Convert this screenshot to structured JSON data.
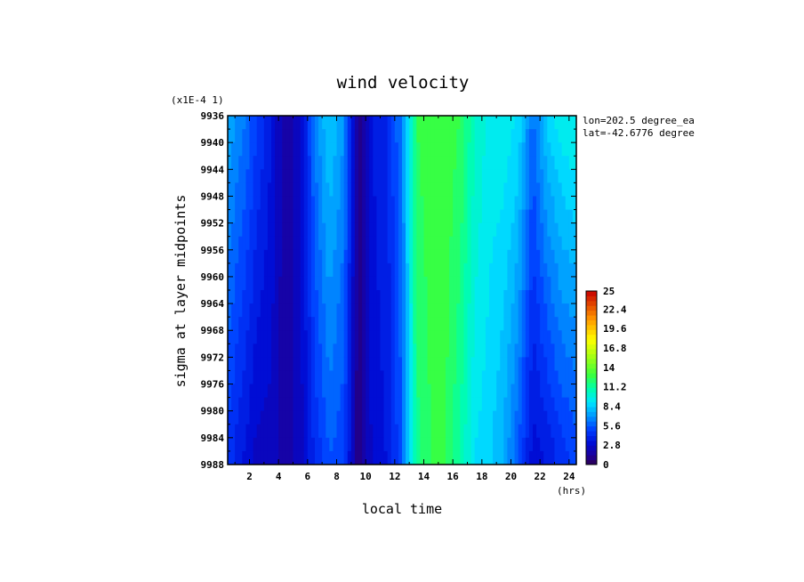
{
  "chart_data": {
    "type": "heatmap",
    "title": "wind velocity",
    "xlabel": "local time",
    "ylabel": "sigma at layer midpoints",
    "x_unit": "(hrs)",
    "y_scale_note": "(x1E-4 1)",
    "info": [
      "lon=202.5 degree_ea",
      "lat=-42.6776 degree"
    ],
    "xlim": [
      0.5,
      24.5
    ],
    "ylim": [
      9936,
      9988
    ],
    "x_ticks": [
      2,
      4,
      6,
      8,
      10,
      12,
      14,
      16,
      18,
      20,
      22,
      24
    ],
    "x_tick_labels": [
      "2",
      "4",
      "6",
      "8",
      "10",
      "12",
      "14",
      "16",
      "18",
      "20",
      "22",
      "24"
    ],
    "y_ticks": [
      9936,
      9940,
      9944,
      9948,
      9952,
      9956,
      9960,
      9964,
      9968,
      9972,
      9976,
      9980,
      9984,
      9988
    ],
    "y_tick_labels": [
      "9936",
      "9940",
      "9944",
      "9948",
      "9952",
      "9956",
      "9960",
      "9964",
      "9968",
      "9972",
      "9976",
      "9980",
      "9984",
      "9988"
    ],
    "colorbar": {
      "min": 0,
      "max": 25,
      "tick_values": [
        0,
        2.8,
        5.6,
        8.4,
        11.2,
        14,
        16.8,
        19.6,
        22.4,
        25
      ],
      "tick_labels": [
        "0",
        "2.8",
        "5.6",
        "8.4",
        "11.2",
        "14",
        "16.8",
        "19.6",
        "22.4",
        "25"
      ]
    },
    "x": [
      0.5,
      1.5,
      2.5,
      3.5,
      4.5,
      5.5,
      6.5,
      7.5,
      8.5,
      9.5,
      10.5,
      11.5,
      12.5,
      13.5,
      14.5,
      15.5,
      16.5,
      17.5,
      18.5,
      19.5,
      20.5,
      21.5,
      22.5,
      23.5,
      24.5
    ],
    "y_top": [
      7.5,
      6.5,
      5,
      3.5,
      1.5,
      2.5,
      6.5,
      8.5,
      7,
      0.8,
      3.5,
      4.2,
      6.5,
      12.5,
      13,
      13,
      12.5,
      10.5,
      9.5,
      9.5,
      9,
      6,
      8.5,
      9.5,
      9.8
    ],
    "y_bottom": [
      4.5,
      3.5,
      2.5,
      2.5,
      1.5,
      2.5,
      4.2,
      5.5,
      5,
      0.8,
      3,
      3.5,
      5.5,
      11.5,
      12.5,
      12.5,
      11,
      9,
      8.5,
      7.5,
      5.5,
      3,
      3.5,
      4.5,
      5
    ]
  }
}
